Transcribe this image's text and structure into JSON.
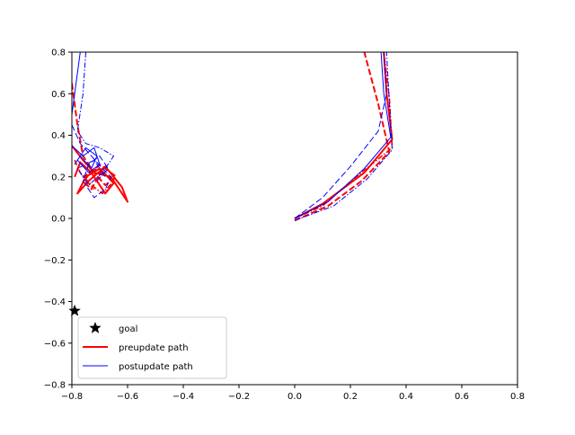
{
  "chart_data": {
    "type": "line",
    "title": "",
    "xlabel": "",
    "ylabel": "",
    "xlim": [
      -0.8,
      0.8
    ],
    "ylim": [
      -0.8,
      0.8
    ],
    "xticks": [
      -0.8,
      -0.6,
      -0.4,
      -0.2,
      0.0,
      0.2,
      0.4,
      0.6,
      0.8
    ],
    "yticks": [
      -0.8,
      -0.6,
      -0.4,
      -0.2,
      0.0,
      0.2,
      0.4,
      0.6,
      0.8
    ],
    "xtick_labels": [
      "−0.8",
      "−0.6",
      "−0.4",
      "−0.2",
      "0.0",
      "0.2",
      "0.4",
      "0.6",
      "0.8"
    ],
    "ytick_labels": [
      "−0.8",
      "−0.6",
      "−0.4",
      "−0.2",
      "0.0",
      "0.2",
      "0.4",
      "0.6",
      "0.8"
    ],
    "grid": false,
    "legend_position": "lower-left",
    "goal": {
      "name": "goal",
      "x": -0.79,
      "y": -0.445,
      "marker": "star",
      "color": "#000000"
    },
    "series": [
      {
        "group": "preupdate",
        "color": "#ff0000",
        "width": 2,
        "dash": "solid",
        "x": [
          0.0,
          0.1,
          0.25,
          0.35,
          0.33,
          0.32
        ],
        "y": [
          0.0,
          0.07,
          0.22,
          0.38,
          0.6,
          0.8
        ]
      },
      {
        "group": "preupdate",
        "color": "#ff0000",
        "width": 2,
        "dash": "dashed",
        "x": [
          0.0,
          0.12,
          0.24,
          0.34,
          0.3,
          0.25
        ],
        "y": [
          -0.01,
          0.06,
          0.18,
          0.32,
          0.55,
          0.8
        ]
      },
      {
        "group": "preupdate",
        "color": "#ff0000",
        "width": 1.6,
        "dash": "dashdot",
        "x": [
          0.0,
          0.1,
          0.22,
          0.35,
          0.34,
          0.32
        ],
        "y": [
          0.0,
          0.06,
          0.2,
          0.34,
          0.58,
          0.8
        ]
      },
      {
        "group": "preupdate",
        "color": "#ff0000",
        "width": 2,
        "dash": "solid",
        "x": [
          -0.8,
          -0.76,
          -0.72,
          -0.66,
          -0.6,
          -0.62,
          -0.68,
          -0.74,
          -0.78,
          -0.75,
          -0.7,
          -0.65,
          -0.68,
          -0.73,
          -0.77,
          -0.79
        ],
        "y": [
          0.35,
          0.28,
          0.22,
          0.2,
          0.08,
          0.15,
          0.25,
          0.18,
          0.12,
          0.2,
          0.24,
          0.17,
          0.12,
          0.22,
          0.27,
          0.2
        ]
      },
      {
        "group": "preupdate",
        "color": "#ff0000",
        "width": 2,
        "dash": "dashed",
        "x": [
          -0.8,
          -0.78,
          -0.76,
          -0.72,
          -0.68,
          -0.64,
          -0.7,
          -0.76,
          -0.73,
          -0.69
        ],
        "y": [
          0.65,
          0.45,
          0.3,
          0.22,
          0.16,
          0.2,
          0.26,
          0.18,
          0.14,
          0.24
        ]
      },
      {
        "group": "preupdate",
        "color": "#ff0000",
        "width": 1.6,
        "dash": "dashdot",
        "x": [
          -0.79,
          -0.77,
          -0.73,
          -0.69,
          -0.65,
          -0.71,
          -0.76,
          -0.72
        ],
        "y": [
          0.28,
          0.22,
          0.16,
          0.12,
          0.18,
          0.24,
          0.2,
          0.14
        ]
      },
      {
        "group": "postupdate",
        "color": "#0000ff",
        "width": 1,
        "dash": "solid",
        "x": [
          0.0,
          0.12,
          0.25,
          0.345,
          0.32,
          0.31
        ],
        "y": [
          0.0,
          0.08,
          0.24,
          0.39,
          0.6,
          0.8
        ]
      },
      {
        "group": "postupdate",
        "color": "#0000ff",
        "width": 1,
        "dash": "dashed",
        "x": [
          0.0,
          0.1,
          0.2,
          0.3,
          0.33,
          0.32
        ],
        "y": [
          0.0,
          0.1,
          0.25,
          0.42,
          0.6,
          0.8
        ]
      },
      {
        "group": "postupdate",
        "color": "#0000ff",
        "width": 1,
        "dash": "dashdot",
        "x": [
          0.0,
          0.14,
          0.26,
          0.35,
          0.34,
          0.33
        ],
        "y": [
          -0.01,
          0.06,
          0.19,
          0.33,
          0.55,
          0.8
        ]
      },
      {
        "group": "postupdate",
        "color": "#0000ff",
        "width": 1,
        "dash": "solid",
        "x": [
          -0.77,
          -0.8,
          -0.8,
          -0.76,
          -0.72,
          -0.7,
          -0.74,
          -0.78,
          -0.75,
          -0.71,
          -0.73,
          -0.77,
          -0.79
        ],
        "y": [
          0.8,
          0.5,
          0.35,
          0.3,
          0.34,
          0.26,
          0.22,
          0.28,
          0.34,
          0.3,
          0.24,
          0.3,
          0.26
        ]
      },
      {
        "group": "postupdate",
        "color": "#0000ff",
        "width": 1,
        "dash": "dashed",
        "x": [
          -0.8,
          -0.77,
          -0.73,
          -0.69,
          -0.66,
          -0.68,
          -0.72,
          -0.76,
          -0.74,
          -0.7,
          -0.67,
          -0.71
        ],
        "y": [
          0.45,
          0.36,
          0.3,
          0.24,
          0.2,
          0.14,
          0.1,
          0.18,
          0.26,
          0.3,
          0.24,
          0.18
        ]
      },
      {
        "group": "postupdate",
        "color": "#0000ff",
        "width": 1,
        "dash": "dashdot",
        "x": [
          -0.75,
          -0.76,
          -0.78,
          -0.75,
          -0.7,
          -0.65,
          -0.69,
          -0.74,
          -0.78,
          -0.72,
          -0.68
        ],
        "y": [
          0.8,
          0.6,
          0.42,
          0.36,
          0.34,
          0.3,
          0.22,
          0.16,
          0.24,
          0.28,
          0.2
        ]
      }
    ],
    "legend": [
      {
        "label": "goal",
        "kind": "star",
        "color": "#000000"
      },
      {
        "label": "preupdate path",
        "kind": "line",
        "color": "#ff0000",
        "width": 2
      },
      {
        "label": "postupdate path",
        "kind": "line",
        "color": "#0000ff",
        "width": 1
      }
    ]
  }
}
